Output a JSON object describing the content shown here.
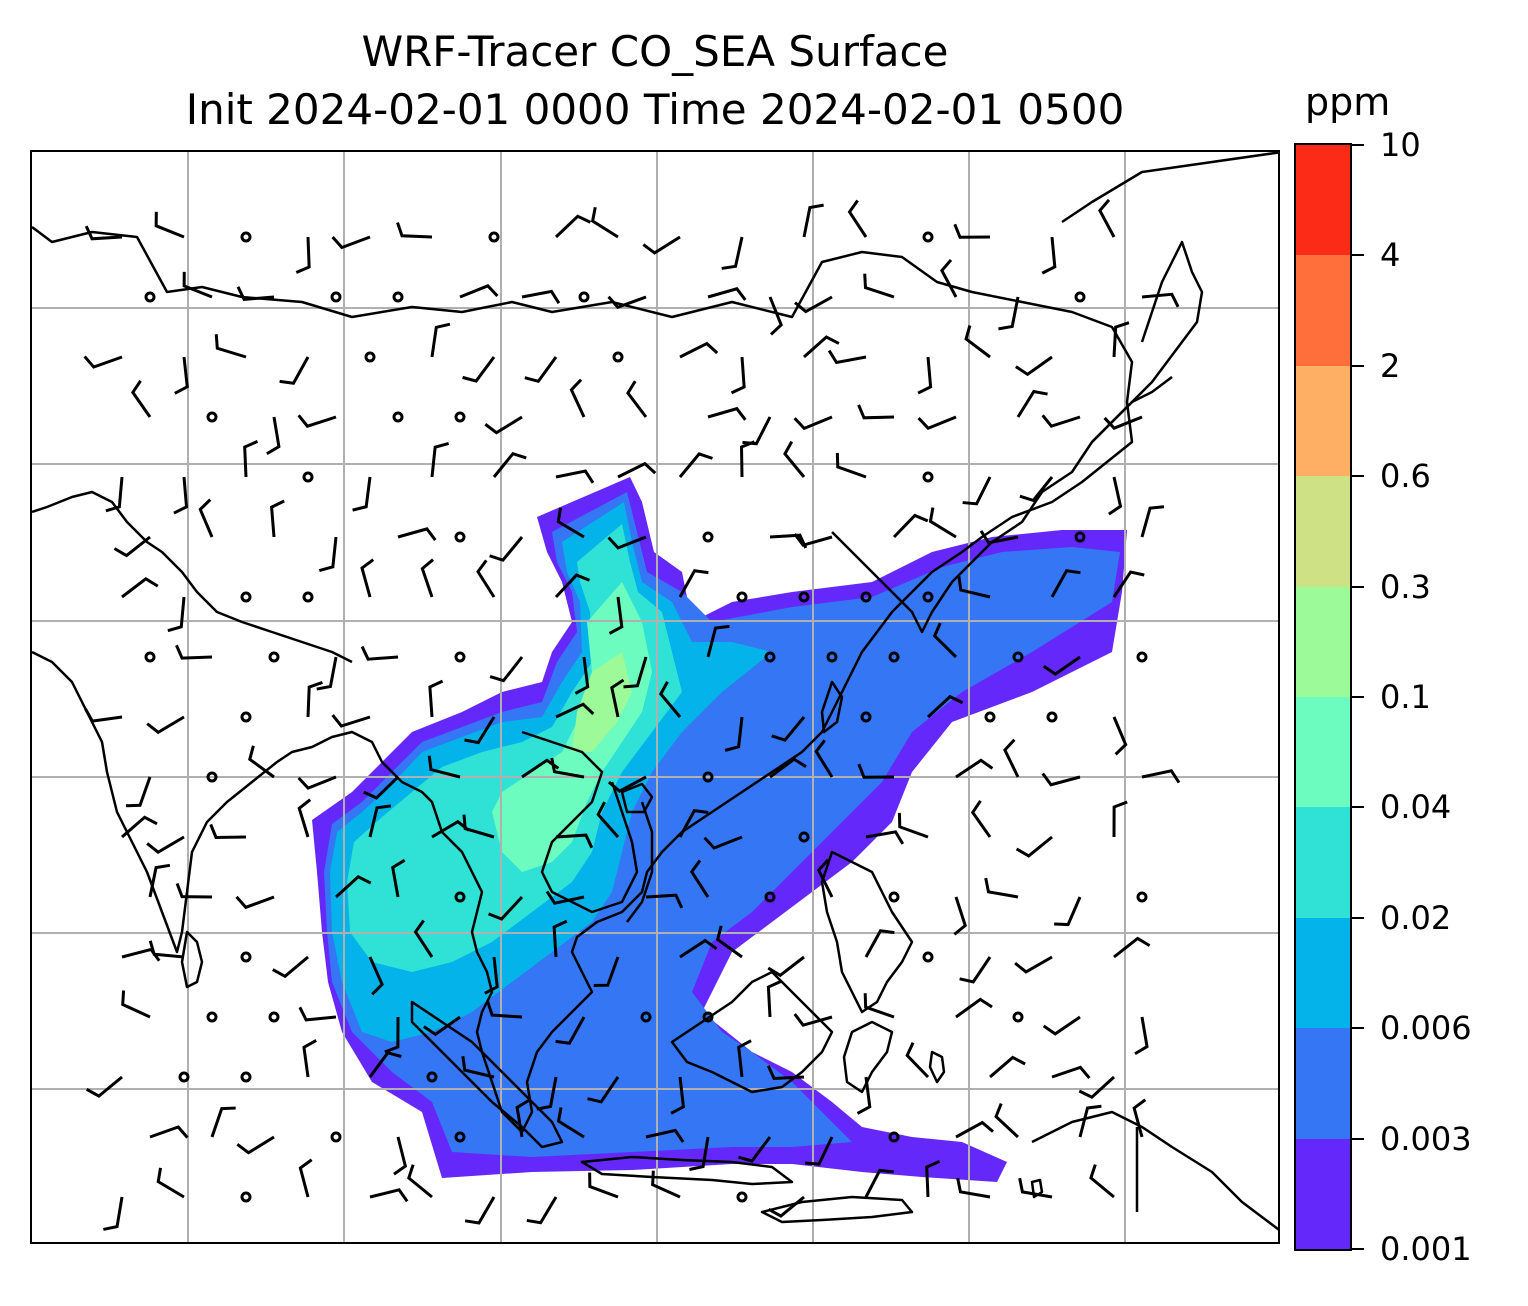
{
  "title": {
    "line1": "WRF-Tracer CO_SEA Surface",
    "line2": "Init 2024-02-01 0000 Time 2024-02-01 0500"
  },
  "colorbar": {
    "unit": "ppm",
    "levels": [
      "0.001",
      "0.003",
      "0.006",
      "0.02",
      "0.04",
      "0.1",
      "0.3",
      "0.6",
      "2",
      "4",
      "10"
    ],
    "colors": [
      "#6528fb",
      "#3476f3",
      "#03b3ea",
      "#30e1d5",
      "#6dfcbf",
      "#9cfa98",
      "#cfe185",
      "#feaf63",
      "#ff6f3c",
      "#fb2b17"
    ]
  },
  "map": {
    "gridlines": true,
    "field_colors": {
      "outer": "#6528fb",
      "mid": "#3476f3",
      "inner": "#03b3ea",
      "core": "#30e1d5",
      "peak": "#6dfcbf",
      "max": "#9cfa98"
    }
  }
}
